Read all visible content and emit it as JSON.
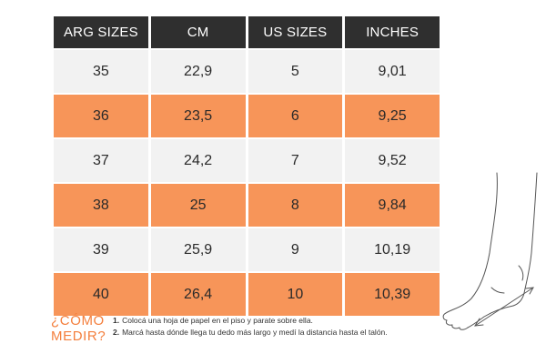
{
  "table": {
    "headers": [
      "ARG SIZES",
      "CM",
      "US SIZES",
      "INCHES"
    ],
    "rows": [
      [
        "35",
        "22,9",
        "5",
        "9,01"
      ],
      [
        "36",
        "23,5",
        "6",
        "9,25"
      ],
      [
        "37",
        "24,2",
        "7",
        "9,52"
      ],
      [
        "38",
        "25",
        "8",
        "9,84"
      ],
      [
        "39",
        "25,9",
        "9",
        "10,19"
      ],
      [
        "40",
        "26,4",
        "10",
        "10,39"
      ]
    ]
  },
  "instructions": {
    "title_line1": "¿CÓMO",
    "title_line2": "MEDIR?",
    "steps": [
      {
        "num": "1.",
        "text": "Colocá una hoja de papel en el piso y parate sobre ella."
      },
      {
        "num": "2.",
        "text": "Marcá hasta dónde llega tu dedo más largo y medí la distancia hasta el talón."
      }
    ]
  },
  "colors": {
    "header_bg": "#2f2f2f",
    "row_light": "#f2f2f2",
    "row_accent": "#f79559",
    "title_accent": "#f47f3d"
  },
  "icons": {
    "illustration": "foot-measure-icon"
  }
}
